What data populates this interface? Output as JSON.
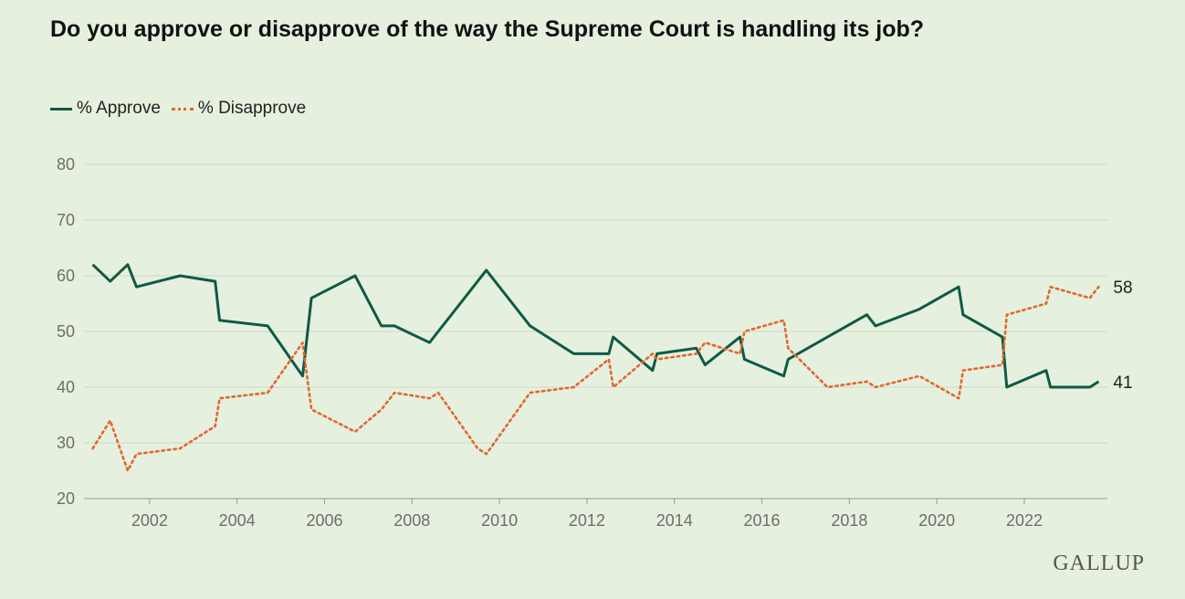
{
  "colors": {
    "approve": "#0e5a46",
    "disapprove": "#e0682f",
    "grid": "#cfd8c6",
    "axis": "#9a9a9a",
    "background": "#e6f0de"
  },
  "chart_data": {
    "type": "line",
    "title": "Do you approve or disapprove of the way the Supreme Court is handling its job?",
    "xlabel": "",
    "ylabel": "",
    "xlim": [
      2000.5,
      2023.9
    ],
    "ylim": [
      20,
      80
    ],
    "yticks": [
      20,
      30,
      40,
      50,
      60,
      70,
      80
    ],
    "xticks": [
      2002,
      2004,
      2006,
      2008,
      2010,
      2012,
      2014,
      2016,
      2018,
      2020,
      2022
    ],
    "grid": true,
    "legend_position": "top-left",
    "series": [
      {
        "name": "% Approve",
        "style": "solid",
        "end_label": "41",
        "x": [
          2000.7,
          2001.1,
          2001.5,
          2001.7,
          2002.7,
          2003.5,
          2003.6,
          2004.7,
          2005.5,
          2005.7,
          2006.7,
          2007.3,
          2007.6,
          2008.4,
          2008.6,
          2009.5,
          2009.7,
          2010.7,
          2011.7,
          2012.5,
          2012.6,
          2013.5,
          2013.6,
          2014.5,
          2014.7,
          2015.5,
          2015.6,
          2016.5,
          2016.6,
          2017.5,
          2018.4,
          2018.6,
          2019.6,
          2020.5,
          2020.6,
          2021.5,
          2021.6,
          2022.5,
          2022.6,
          2023.5,
          2023.7
        ],
        "values": [
          62,
          59,
          62,
          58,
          60,
          59,
          52,
          51,
          42,
          56,
          60,
          51,
          51,
          48,
          50,
          59,
          61,
          51,
          46,
          46,
          49,
          43,
          46,
          47,
          44,
          49,
          45,
          42,
          45,
          49,
          53,
          51,
          54,
          58,
          53,
          49,
          40,
          43,
          40,
          40,
          41
        ]
      },
      {
        "name": "% Disapprove",
        "style": "dotted",
        "end_label": "58",
        "x": [
          2000.7,
          2001.1,
          2001.5,
          2001.7,
          2002.7,
          2003.5,
          2003.6,
          2004.7,
          2005.5,
          2005.7,
          2006.7,
          2007.3,
          2007.6,
          2008.4,
          2008.6,
          2009.5,
          2009.7,
          2010.7,
          2011.7,
          2012.5,
          2012.6,
          2013.5,
          2013.6,
          2014.5,
          2014.7,
          2015.5,
          2015.6,
          2016.5,
          2016.6,
          2017.5,
          2018.4,
          2018.6,
          2019.6,
          2020.5,
          2020.6,
          2021.5,
          2021.6,
          2022.5,
          2022.6,
          2023.5,
          2023.7
        ],
        "values": [
          29,
          34,
          25,
          28,
          29,
          33,
          38,
          39,
          48,
          36,
          32,
          36,
          39,
          38,
          39,
          29,
          28,
          39,
          40,
          45,
          40,
          46,
          45,
          46,
          48,
          46,
          50,
          52,
          47,
          40,
          41,
          40,
          42,
          38,
          43,
          44,
          53,
          55,
          58,
          56,
          58
        ]
      }
    ]
  },
  "legend": {
    "approve": "% Approve",
    "disapprove": "% Disapprove"
  },
  "brand": "GALLUP"
}
